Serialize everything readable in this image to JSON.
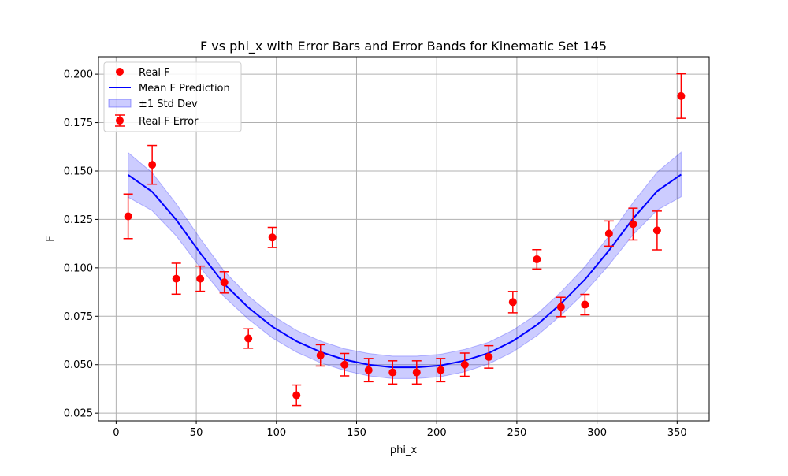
{
  "chart_data": {
    "type": "scatter",
    "title": "F vs phi_x with Error Bars and Error Bands for Kinematic Set 145",
    "xlabel": "phi_x",
    "ylabel": "F",
    "xlim": [
      -11,
      370
    ],
    "ylim": [
      0.021,
      0.209
    ],
    "xticks": [
      0,
      50,
      100,
      150,
      200,
      250,
      300,
      350
    ],
    "yticks": [
      0.025,
      0.05,
      0.075,
      0.1,
      0.125,
      0.15,
      0.175,
      0.2
    ],
    "xtick_labels": [
      "0",
      "50",
      "100",
      "150",
      "200",
      "250",
      "300",
      "350"
    ],
    "ytick_labels": [
      "0.025",
      "0.050",
      "0.075",
      "0.100",
      "0.125",
      "0.150",
      "0.175",
      "0.200"
    ],
    "grid": true,
    "legend_position": "top-left",
    "legend": [
      {
        "label": "Real F",
        "kind": "marker"
      },
      {
        "label": "Mean F Prediction",
        "kind": "line"
      },
      {
        "label": "±1 Std Dev",
        "kind": "band"
      },
      {
        "label": "Real F Error",
        "kind": "errorbar"
      }
    ],
    "colors": {
      "points": "#ff0000",
      "line": "#0000ff",
      "band": "#0000ff"
    },
    "series": [
      {
        "name": "Real F",
        "x": [
          7.5,
          22.5,
          37.5,
          52.5,
          67.5,
          82.5,
          97.5,
          112.5,
          127.5,
          142.5,
          157.5,
          172.5,
          187.5,
          202.5,
          217.5,
          232.5,
          247.5,
          262.5,
          277.5,
          292.5,
          307.5,
          322.5,
          337.5,
          352.5
        ],
        "y": [
          0.1266,
          0.1532,
          0.0944,
          0.0944,
          0.0925,
          0.0635,
          0.1157,
          0.0342,
          0.0548,
          0.05,
          0.0472,
          0.046,
          0.046,
          0.0472,
          0.05,
          0.054,
          0.0823,
          0.1044,
          0.0798,
          0.081,
          0.1177,
          0.1226,
          0.1193,
          0.1887
        ],
        "err": [
          0.0115,
          0.01,
          0.008,
          0.0065,
          0.0055,
          0.005,
          0.0052,
          0.0053,
          0.0055,
          0.0058,
          0.006,
          0.006,
          0.006,
          0.006,
          0.006,
          0.0058,
          0.0055,
          0.005,
          0.005,
          0.0053,
          0.0065,
          0.0082,
          0.01,
          0.0115
        ]
      },
      {
        "name": "Mean F Prediction",
        "x": [
          7.5,
          22.5,
          37.5,
          52.5,
          67.5,
          82.5,
          97.5,
          112.5,
          127.5,
          142.5,
          157.5,
          172.5,
          187.5,
          202.5,
          217.5,
          232.5,
          247.5,
          262.5,
          277.5,
          292.5,
          307.5,
          322.5,
          337.5,
          352.5
        ],
        "y": [
          0.148,
          0.1393,
          0.1248,
          0.1076,
          0.0916,
          0.0795,
          0.0696,
          0.0621,
          0.0566,
          0.0526,
          0.05,
          0.0486,
          0.0486,
          0.0496,
          0.0521,
          0.056,
          0.0622,
          0.0705,
          0.0815,
          0.094,
          0.109,
          0.1254,
          0.1396,
          0.1482
        ],
        "std": [
          0.0115,
          0.0098,
          0.0083,
          0.0075,
          0.0066,
          0.006,
          0.0058,
          0.0056,
          0.0056,
          0.0056,
          0.0058,
          0.0058,
          0.0058,
          0.0058,
          0.0058,
          0.0056,
          0.0056,
          0.0056,
          0.006,
          0.0066,
          0.0075,
          0.0083,
          0.0098,
          0.0115
        ]
      }
    ]
  }
}
